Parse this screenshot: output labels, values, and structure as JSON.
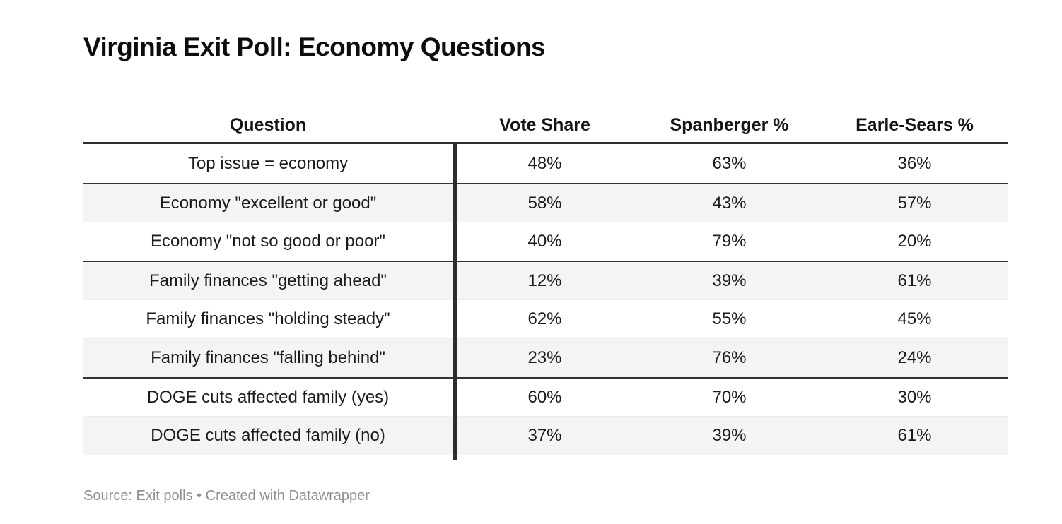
{
  "chart_data": {
    "type": "table",
    "title": "Virginia Exit Poll: Economy Questions",
    "columns": [
      "Question",
      "Vote Share",
      "Spanberger %",
      "Earle-Sears %"
    ],
    "rows": [
      [
        "Top issue = economy",
        "48%",
        "63%",
        "36%"
      ],
      [
        "Economy \"excellent or good\"",
        "58%",
        "43%",
        "57%"
      ],
      [
        "Economy \"not so good or poor\"",
        "40%",
        "79%",
        "20%"
      ],
      [
        "Family finances \"getting ahead\"",
        "12%",
        "39%",
        "61%"
      ],
      [
        "Family finances \"holding steady\"",
        "62%",
        "55%",
        "45%"
      ],
      [
        "Family finances \"falling behind\"",
        "23%",
        "76%",
        "24%"
      ],
      [
        "DOGE cuts affected family (yes)",
        "60%",
        "70%",
        "30%"
      ],
      [
        "DOGE cuts affected family (no)",
        "37%",
        "39%",
        "61%"
      ]
    ],
    "source_note": "Source: Exit polls • Created with Datawrapper",
    "layout": {
      "striped_rows": "even rows light gray",
      "group_breaks_after_rows": [
        1,
        3,
        6
      ],
      "column_alignment": "center",
      "vertical_divider_after_column": "Question"
    }
  },
  "colors": {
    "stripe": "#f4f4f4",
    "border_dark": "#2d2d2d",
    "text": "#1b1b1b",
    "title_text": "#0d0d0d",
    "source_text": "#8f8f8f",
    "background": "#ffffff"
  }
}
